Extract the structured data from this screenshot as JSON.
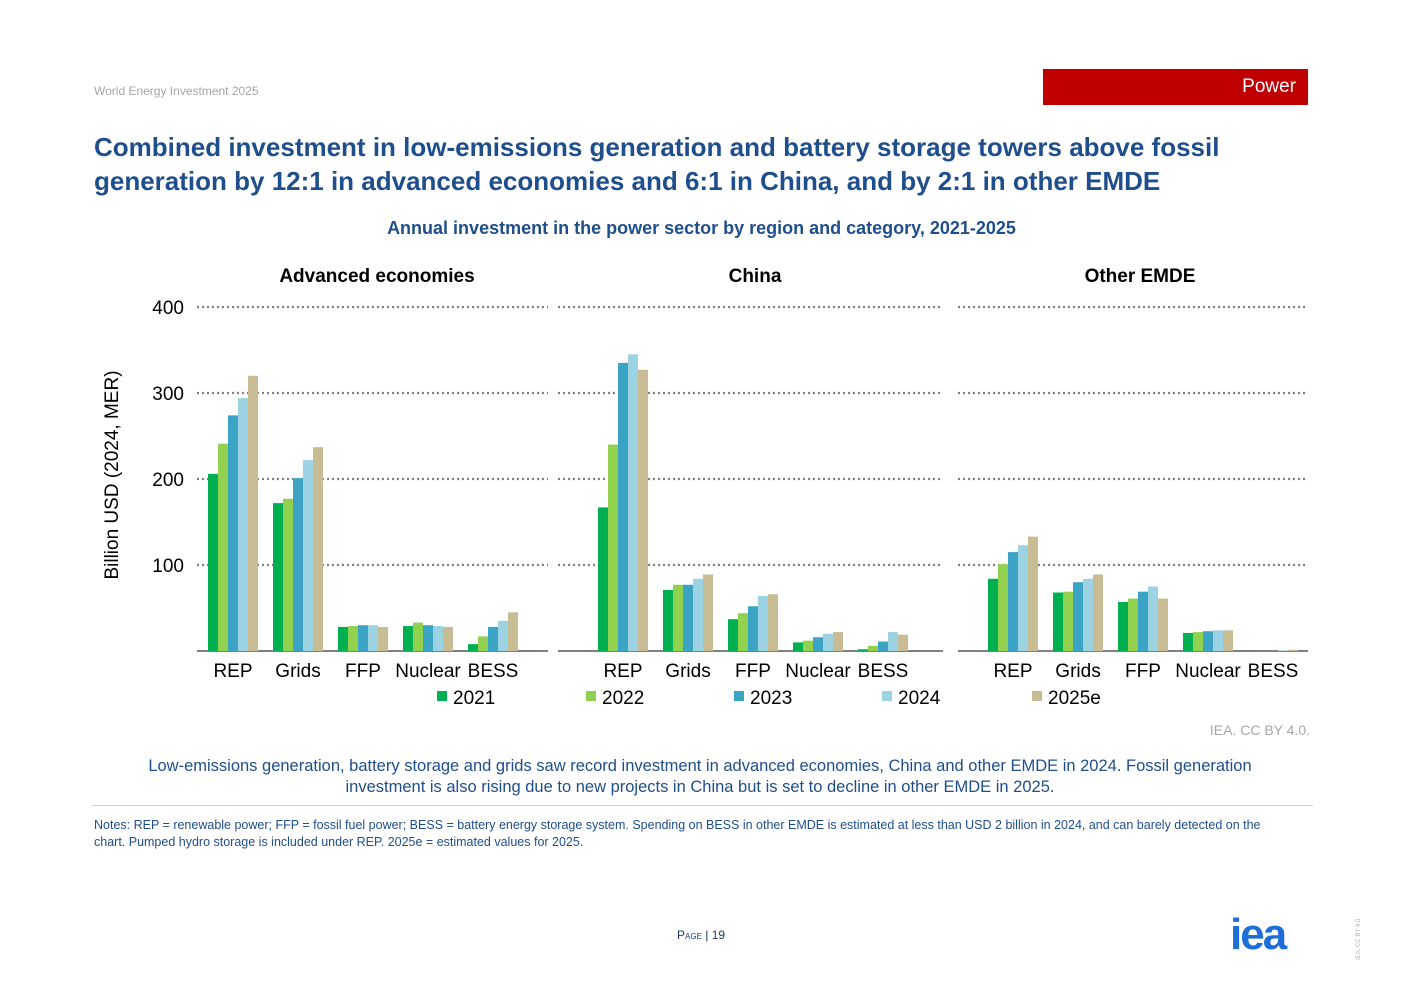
{
  "header": {
    "doc_title": "World Energy Investment 2025",
    "section": "Power"
  },
  "title": "Combined investment in low-emissions generation and battery storage towers above fossil generation by 12:1 in advanced economies and 6:1 in China, and by 2:1 in other EMDE",
  "chart_data": {
    "type": "bar",
    "title": "Annual investment in the power sector by region and category, 2021-2025",
    "ylabel": "Billion USD (2024, MER)",
    "ylim": [
      0,
      400
    ],
    "yticks": [
      100,
      200,
      300,
      400
    ],
    "grid": true,
    "legend_position": "bottom",
    "categories": [
      "REP",
      "Grids",
      "FFP",
      "Nuclear",
      "BESS"
    ],
    "series_names": [
      "2021",
      "2022",
      "2023",
      "2024",
      "2025e"
    ],
    "colors": [
      "#00b050",
      "#92d050",
      "#3ba3c4",
      "#9bd3e3",
      "#c8bc95"
    ],
    "panels": [
      {
        "name": "Advanced economies",
        "values": [
          [
            206,
            241,
            274,
            294,
            320
          ],
          [
            172,
            177,
            201,
            222,
            237
          ],
          [
            28,
            29,
            30,
            30,
            28
          ],
          [
            29,
            33,
            30,
            29,
            28
          ],
          [
            8,
            17,
            28,
            35,
            45
          ]
        ]
      },
      {
        "name": "China",
        "values": [
          [
            167,
            240,
            335,
            345,
            327
          ],
          [
            71,
            77,
            77,
            84,
            89
          ],
          [
            37,
            44,
            52,
            64,
            66
          ],
          [
            10,
            12,
            16,
            20,
            22
          ],
          [
            2,
            6,
            11,
            22,
            19
          ]
        ]
      },
      {
        "name": "Other EMDE",
        "values": [
          [
            84,
            101,
            115,
            123,
            133
          ],
          [
            68,
            69,
            80,
            84,
            89
          ],
          [
            57,
            61,
            69,
            75,
            61
          ],
          [
            21,
            22,
            23,
            24,
            24
          ],
          [
            0,
            0,
            0,
            0.5,
            1.5
          ]
        ]
      }
    ]
  },
  "credit": "IEA. CC BY 4.0.",
  "caption": "Low-emissions generation, battery storage and grids saw record investment in advanced economies, China and other EMDE in 2024. Fossil generation investment is also rising due to new projects in China but is set to decline in other EMDE in 2025.",
  "notes": "Notes: REP = renewable power; FFP = fossil fuel power; BESS = battery energy storage system. Spending on BESS in other EMDE is estimated at less than USD 2 billion in 2024, and can barely detected on the chart. Pumped hydro storage is included under REP. 2025e = estimated values for 2025.",
  "footer": {
    "page_label": "Page",
    "page_number": "19",
    "logo_text": "iea",
    "side_credit": "IEA. CC BY 4.0."
  }
}
